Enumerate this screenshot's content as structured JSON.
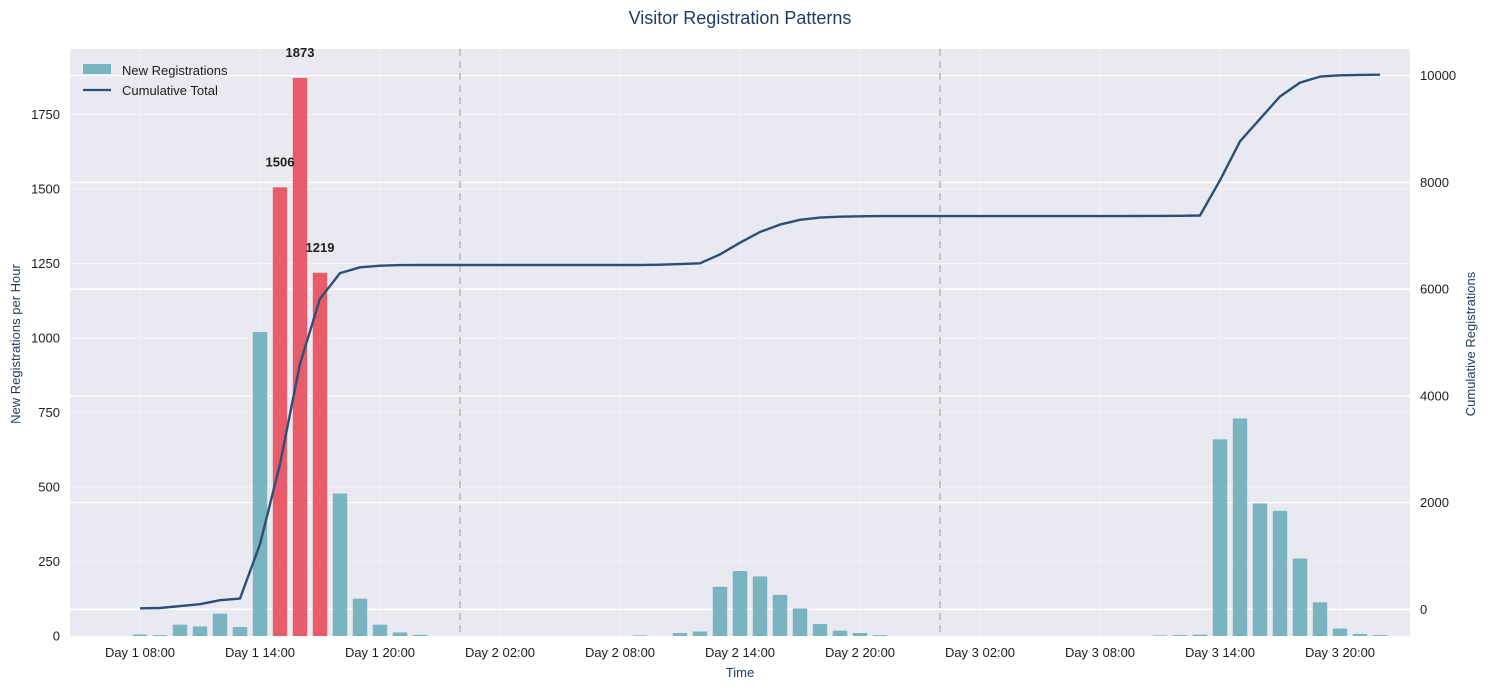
{
  "chart_data": {
    "type": "bar",
    "title": "Visitor Registration Patterns",
    "xlabel": "Time",
    "ylabel": "New Registrations per Hour",
    "y2label": "Cumulative Registrations",
    "ylim": [
      0,
      1970
    ],
    "y2lim": [
      -500,
      10500
    ],
    "yticks": [
      0,
      250,
      500,
      750,
      1000,
      1250,
      1500,
      1750
    ],
    "y2ticks": [
      0,
      2000,
      4000,
      6000,
      8000,
      10000
    ],
    "xticks": [
      {
        "hour": 8,
        "label": "Day 1 08:00"
      },
      {
        "hour": 14,
        "label": "Day 1 14:00"
      },
      {
        "hour": 20,
        "label": "Day 1 20:00"
      },
      {
        "hour": 26,
        "label": "Day 2 02:00"
      },
      {
        "hour": 32,
        "label": "Day 2 08:00"
      },
      {
        "hour": 38,
        "label": "Day 2 14:00"
      },
      {
        "hour": 44,
        "label": "Day 2 20:00"
      },
      {
        "hour": 50,
        "label": "Day 3 02:00"
      },
      {
        "hour": 56,
        "label": "Day 3 08:00"
      },
      {
        "hour": 62,
        "label": "Day 3 14:00"
      },
      {
        "hour": 68,
        "label": "Day 3 20:00"
      }
    ],
    "xlim": [
      4.5,
      71.5
    ],
    "day_boundaries": [
      24,
      48
    ],
    "bars": [
      {
        "hour": 8,
        "value": 5
      },
      {
        "hour": 9,
        "value": 3
      },
      {
        "hour": 10,
        "value": 38
      },
      {
        "hour": 11,
        "value": 32
      },
      {
        "hour": 12,
        "value": 75
      },
      {
        "hour": 13,
        "value": 30
      },
      {
        "hour": 14,
        "value": 1020
      },
      {
        "hour": 15,
        "value": 1506,
        "highlight": true,
        "label": "1506"
      },
      {
        "hour": 16,
        "value": 1873,
        "highlight": true,
        "label": "1873"
      },
      {
        "hour": 17,
        "value": 1219,
        "highlight": true,
        "label": "1219"
      },
      {
        "hour": 18,
        "value": 478
      },
      {
        "hour": 19,
        "value": 125
      },
      {
        "hour": 20,
        "value": 38
      },
      {
        "hour": 21,
        "value": 12
      },
      {
        "hour": 22,
        "value": 4
      },
      {
        "hour": 33,
        "value": 2
      },
      {
        "hour": 35,
        "value": 10
      },
      {
        "hour": 36,
        "value": 15
      },
      {
        "hour": 37,
        "value": 165
      },
      {
        "hour": 38,
        "value": 218
      },
      {
        "hour": 39,
        "value": 200
      },
      {
        "hour": 40,
        "value": 138
      },
      {
        "hour": 41,
        "value": 92
      },
      {
        "hour": 42,
        "value": 40
      },
      {
        "hour": 43,
        "value": 18
      },
      {
        "hour": 44,
        "value": 10
      },
      {
        "hour": 45,
        "value": 3
      },
      {
        "hour": 59,
        "value": 2
      },
      {
        "hour": 60,
        "value": 3
      },
      {
        "hour": 61,
        "value": 5
      },
      {
        "hour": 62,
        "value": 660
      },
      {
        "hour": 63,
        "value": 730
      },
      {
        "hour": 64,
        "value": 445
      },
      {
        "hour": 65,
        "value": 420
      },
      {
        "hour": 66,
        "value": 260
      },
      {
        "hour": 67,
        "value": 113
      },
      {
        "hour": 68,
        "value": 25
      },
      {
        "hour": 69,
        "value": 7
      },
      {
        "hour": 70,
        "value": 3
      }
    ],
    "cumulative": {
      "hours": [
        8,
        9,
        10,
        11,
        12,
        13,
        14,
        15,
        16,
        17,
        18,
        19,
        20,
        21,
        22,
        33,
        34,
        35,
        36,
        37,
        38,
        39,
        40,
        41,
        42,
        43,
        44,
        45,
        56,
        57,
        58,
        59,
        60,
        61,
        62,
        63,
        64,
        65,
        66,
        67,
        68,
        69,
        70
      ],
      "values": [
        20,
        25,
        60,
        95,
        170,
        200,
        1220,
        2720,
        4600,
        5820,
        6300,
        6410,
        6440,
        6450,
        6452,
        6452,
        6457,
        6470,
        6485,
        6650,
        6870,
        7070,
        7210,
        7300,
        7340,
        7357,
        7365,
        7368,
        7368,
        7368,
        7370,
        7372,
        7375,
        7380,
        8040,
        8770,
        9190,
        9610,
        9870,
        9983,
        10008,
        10015,
        10018
      ]
    },
    "series": [
      {
        "name": "New Registrations"
      },
      {
        "name": "Cumulative Total"
      }
    ],
    "legend_position": "top-left",
    "grid": true,
    "colors": {
      "bar": "#7ab4c1",
      "highlight": "#e85c69",
      "line": "#2d4e76",
      "plot_bg": "#e9e9f1",
      "grid": "#ffffff",
      "boundary": "#c4c4c4"
    }
  }
}
